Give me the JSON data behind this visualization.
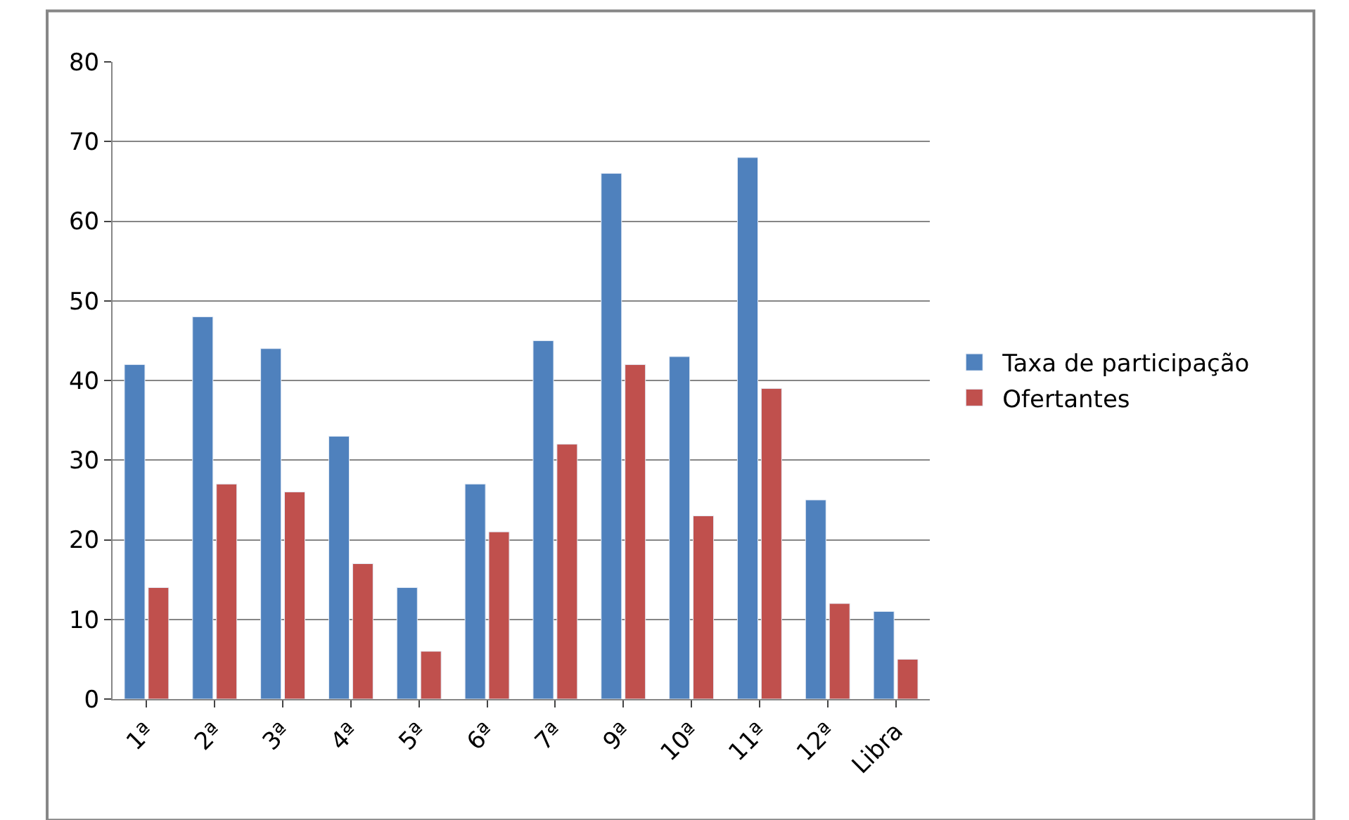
{
  "chart_data": {
    "type": "bar",
    "categories": [
      "1ª",
      "2ª",
      "3ª",
      "4ª",
      "5ª",
      "6ª",
      "7ª",
      "9ª",
      "10ª",
      "11ª",
      "12ª",
      "Libra"
    ],
    "series": [
      {
        "name": "Taxa de participação",
        "color": "#4f81bd",
        "values": [
          42,
          48,
          44,
          33,
          14,
          27,
          45,
          66,
          43,
          68,
          25,
          11
        ]
      },
      {
        "name": "Ofertantes",
        "color": "#c0504d",
        "values": [
          14,
          27,
          26,
          17,
          6,
          21,
          32,
          42,
          23,
          39,
          12,
          5
        ]
      }
    ],
    "ylim": [
      0,
      80
    ],
    "yticks": [
      0,
      10,
      20,
      30,
      40,
      50,
      60,
      70,
      80
    ],
    "grid": "y",
    "legend": "right"
  }
}
